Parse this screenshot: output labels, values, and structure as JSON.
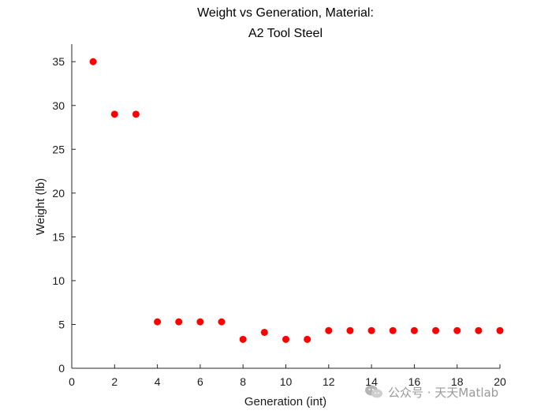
{
  "chart_data": {
    "type": "scatter",
    "title_lines": [
      "Weight vs Generation, Material:",
      "A2 Tool Steel"
    ],
    "xlabel": "Generation (int)",
    "ylabel": "Weight (lb)",
    "xlim": [
      0,
      20
    ],
    "ylim": [
      0,
      37
    ],
    "xticks": [
      0,
      2,
      4,
      6,
      8,
      10,
      12,
      14,
      16,
      18,
      20
    ],
    "yticks": [
      0,
      5,
      10,
      15,
      20,
      25,
      30,
      35
    ],
    "grid": false,
    "marker_color": "#ff0000",
    "series": [
      {
        "name": "Weight",
        "x": [
          1,
          2,
          3,
          4,
          5,
          6,
          7,
          8,
          9,
          10,
          11,
          12,
          13,
          14,
          15,
          16,
          17,
          18,
          19,
          20
        ],
        "y": [
          35,
          29,
          29,
          5.3,
          5.3,
          5.3,
          5.3,
          3.3,
          4.1,
          3.3,
          3.3,
          4.3,
          4.3,
          4.3,
          4.3,
          4.3,
          4.3,
          4.3,
          4.3,
          4.3
        ]
      }
    ]
  },
  "watermark": {
    "text": "公众号 · 天天Matlab",
    "icon": "wechat-icon"
  }
}
